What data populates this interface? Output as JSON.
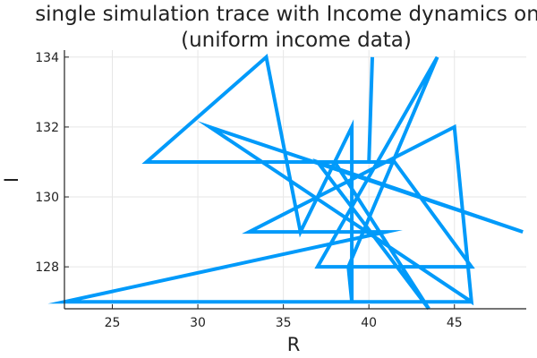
{
  "chart_data": {
    "type": "line",
    "title_lines": [
      "single simulation trace with Income dynamics only",
      "(uniform income data)"
    ],
    "xlabel": "R",
    "ylabel": "I",
    "xlim": [
      22.2,
      49.2
    ],
    "ylim": [
      126.8,
      134.2
    ],
    "x_ticks": [
      25,
      30,
      35,
      40,
      45
    ],
    "y_ticks": [
      128,
      130,
      132,
      134
    ],
    "grid": true,
    "legend": "none",
    "series": [
      {
        "color": "#009AFA",
        "points": [
          [
            40.2,
            134.0
          ],
          [
            40.0,
            131.0
          ],
          [
            27.0,
            131.0
          ],
          [
            34.0,
            134.0
          ],
          [
            36.0,
            129.0
          ],
          [
            39.0,
            132.0
          ],
          [
            39.0,
            127.0
          ],
          [
            22.2,
            127.0
          ],
          [
            41.0,
            129.0
          ],
          [
            33.0,
            129.0
          ],
          [
            45.0,
            132.0
          ],
          [
            46.0,
            127.0
          ],
          [
            30.7,
            132.0
          ],
          [
            49.0,
            129.0
          ],
          [
            37.0,
            131.0
          ],
          [
            43.5,
            126.8
          ],
          [
            38.0,
            131.0
          ],
          [
            41.5,
            131.0
          ],
          [
            46.0,
            128.0
          ],
          [
            37.0,
            128.0
          ],
          [
            44.0,
            134.0
          ],
          [
            38.8,
            128.0
          ],
          [
            39.0,
            127.0
          ],
          [
            46.0,
            127.0
          ]
        ]
      }
    ]
  }
}
